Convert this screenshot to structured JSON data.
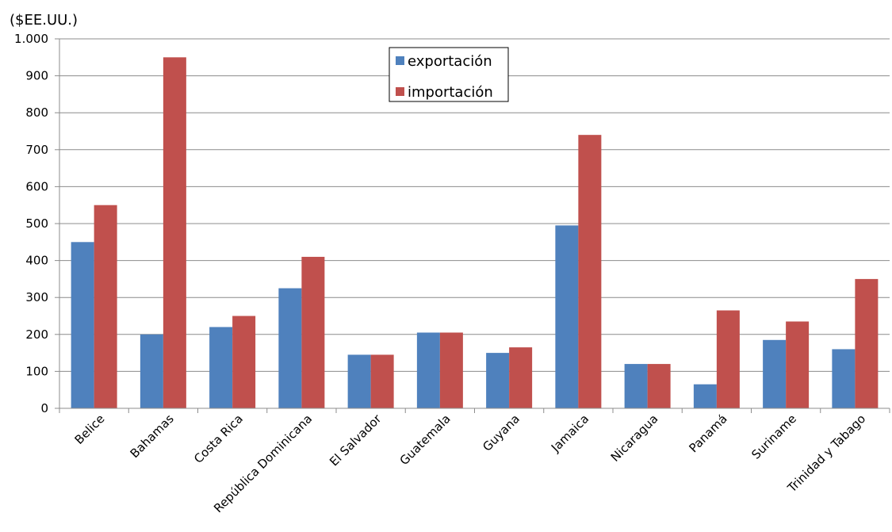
{
  "chart_data": {
    "type": "bar",
    "ylabel": "($EE.UU.)",
    "ylim": [
      0,
      1000
    ],
    "yticks": [
      0,
      100,
      200,
      300,
      400,
      500,
      600,
      700,
      800,
      900,
      1000
    ],
    "ytick_labels": [
      "0",
      "100",
      "200",
      "300",
      "400",
      "500",
      "600",
      "700",
      "800",
      "900",
      "1.000"
    ],
    "grid": true,
    "legend_position": "top-center",
    "categories": [
      "Belice",
      "Bahamas",
      "Costa Rica",
      "República Dominicana",
      "El Salvador",
      "Guatemala",
      "Guyana",
      "Jamaica",
      "Nicaragua",
      "Panamá",
      "Suriname",
      "Trinidad y Tabago"
    ],
    "series": [
      {
        "name": "exportación",
        "color": "#4f81bd",
        "values": [
          450,
          200,
          220,
          325,
          145,
          205,
          150,
          495,
          120,
          65,
          185,
          160
        ]
      },
      {
        "name": "importación",
        "color": "#c0504d",
        "values": [
          550,
          950,
          250,
          410,
          145,
          205,
          165,
          740,
          120,
          265,
          235,
          350
        ]
      }
    ]
  }
}
